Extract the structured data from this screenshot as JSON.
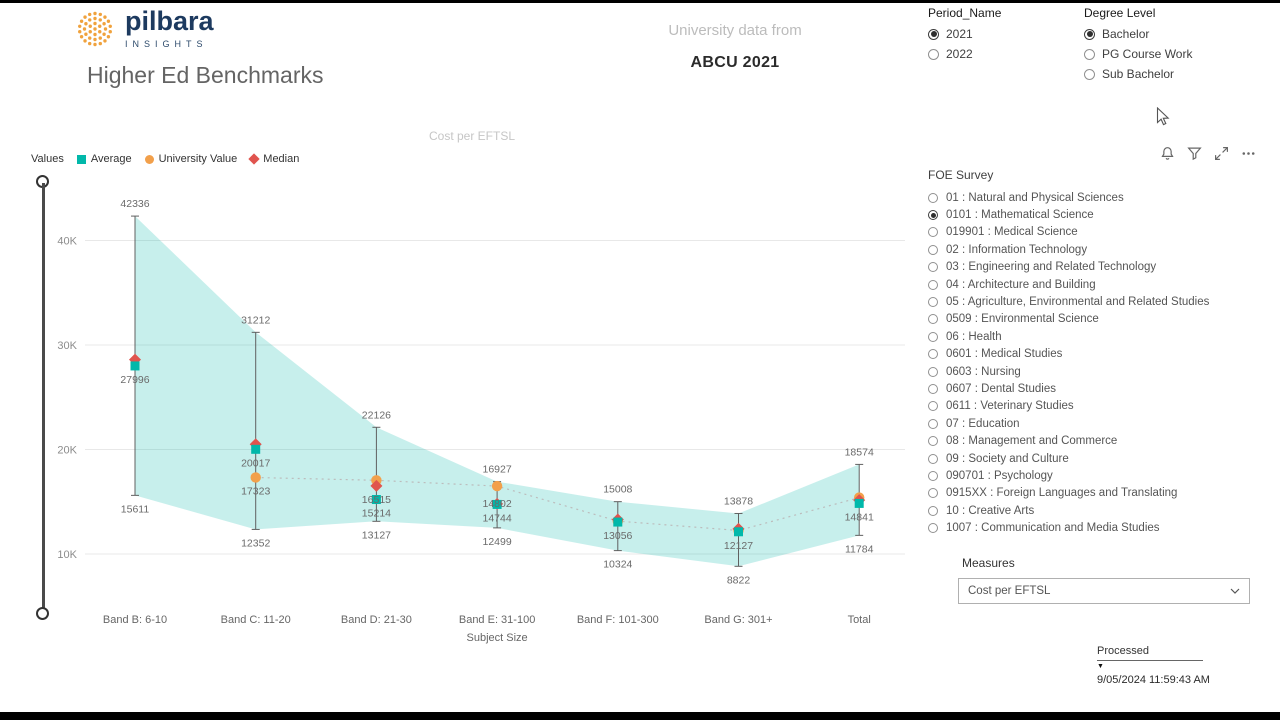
{
  "header": {
    "brand_name": "pilbara",
    "brand_tagline": "INSIGHTS",
    "title": "Higher Ed Benchmarks",
    "center_label": "University data from",
    "center_value": "ABCU 2021"
  },
  "filters": {
    "period": {
      "label": "Period_Name",
      "options": [
        {
          "label": "2021",
          "selected": true
        },
        {
          "label": "2022",
          "selected": false
        }
      ]
    },
    "degree": {
      "label": "Degree Level",
      "options": [
        {
          "label": "Bachelor",
          "selected": true
        },
        {
          "label": "PG Course Work",
          "selected": false
        },
        {
          "label": "Sub Bachelor",
          "selected": false
        }
      ]
    }
  },
  "visual_header": {
    "icons": [
      "bell-icon",
      "filter-icon",
      "focus-mode-icon",
      "more-options-icon"
    ]
  },
  "foe": {
    "label": "FOE Survey",
    "options": [
      {
        "label": "01 : Natural and Physical Sciences",
        "selected": false
      },
      {
        "label": "0101 : Mathematical Science",
        "selected": true
      },
      {
        "label": "019901 : Medical Science",
        "selected": false
      },
      {
        "label": "02 : Information Technology",
        "selected": false
      },
      {
        "label": "03 : Engineering and Related Technology",
        "selected": false
      },
      {
        "label": "04 : Architecture and Building",
        "selected": false
      },
      {
        "label": "05 : Agriculture, Environmental and Related Studies",
        "selected": false
      },
      {
        "label": "0509 : Environmental Science",
        "selected": false
      },
      {
        "label": "06 : Health",
        "selected": false
      },
      {
        "label": "0601 : Medical Studies",
        "selected": false
      },
      {
        "label": "0603 : Nursing",
        "selected": false
      },
      {
        "label": "0607 : Dental Studies",
        "selected": false
      },
      {
        "label": "0611 : Veterinary Studies",
        "selected": false
      },
      {
        "label": "07 : Education",
        "selected": false
      },
      {
        "label": "08 : Management and Commerce",
        "selected": false
      },
      {
        "label": "09 : Society and Culture",
        "selected": false
      },
      {
        "label": "090701 : Psychology",
        "selected": false
      },
      {
        "label": "0915XX : Foreign Languages and Translating",
        "selected": false
      },
      {
        "label": "10 : Creative Arts",
        "selected": false
      },
      {
        "label": "1007 : Communication and Media Studies",
        "selected": false
      }
    ]
  },
  "measures": {
    "label": "Measures",
    "value": "Cost per EFTSL"
  },
  "processed": {
    "label": "Processed",
    "value": "9/05/2024 11:59:43 AM"
  },
  "chart_data": {
    "type": "line",
    "subtype": "error-bars-with-min-max-band",
    "title": "Cost per EFTSL",
    "xlabel": "Subject Size",
    "ylabel": "",
    "legend_label": "Values",
    "legend_position": "top-left",
    "grid": true,
    "band_fill_color": "#01b8aa",
    "series_meta": [
      {
        "key": "average",
        "name": "Average",
        "marker": "square",
        "color": "#01b8aa"
      },
      {
        "key": "university",
        "name": "University Value",
        "marker": "circle",
        "color": "#f2a04b"
      },
      {
        "key": "median",
        "name": "Median",
        "marker": "diamond",
        "color": "#e0544e"
      }
    ],
    "yticks": [
      {
        "value": 10000,
        "label": "10K"
      },
      {
        "value": 20000,
        "label": "20K"
      },
      {
        "value": 30000,
        "label": "30K"
      },
      {
        "value": 40000,
        "label": "40K"
      }
    ],
    "categories": [
      "Band B: 6-10",
      "Band C: 11-20",
      "Band D: 21-30",
      "Band E: 31-100",
      "Band F: 101-300",
      "Band G: 301+",
      "Total"
    ],
    "points": [
      {
        "category": "Band B: 6-10",
        "max": 42336,
        "min": 15611,
        "average": 27996,
        "median": 28600,
        "university": null,
        "labels": [
          {
            "series": "max",
            "pos": "above"
          },
          {
            "series": "average",
            "pos": "below"
          },
          {
            "series": "min",
            "pos": "below"
          }
        ]
      },
      {
        "category": "Band C: 11-20",
        "max": 31212,
        "min": 12352,
        "average": 20017,
        "median": 20500,
        "university": 17323,
        "labels": [
          {
            "series": "max",
            "pos": "above"
          },
          {
            "series": "average",
            "pos": "below"
          },
          {
            "series": "university",
            "pos": "below"
          },
          {
            "series": "min",
            "pos": "below"
          }
        ]
      },
      {
        "category": "Band D: 21-30",
        "max": 22126,
        "min": 13127,
        "average": 15214,
        "median": 16515,
        "university": 17050,
        "labels": [
          {
            "series": "max",
            "pos": "above"
          },
          {
            "series": "median",
            "pos": "below"
          },
          {
            "series": "average",
            "pos": "below"
          },
          {
            "series": "min",
            "pos": "below"
          }
        ]
      },
      {
        "category": "Band E: 31-100",
        "max": 16927,
        "min": 12499,
        "average": 14744,
        "median": 14802,
        "university": 16500,
        "labels": [
          {
            "series": "max",
            "pos": "above"
          },
          {
            "series": "median",
            "pos": "on"
          },
          {
            "series": "average",
            "pos": "below"
          },
          {
            "series": "min",
            "pos": "below"
          }
        ]
      },
      {
        "category": "Band F: 101-300",
        "max": 15008,
        "min": 10324,
        "average": 13056,
        "median": 13300,
        "university": 13150,
        "labels": [
          {
            "series": "max",
            "pos": "above"
          },
          {
            "series": "average",
            "pos": "below"
          },
          {
            "series": "min",
            "pos": "below"
          }
        ]
      },
      {
        "category": "Band G: 301+",
        "max": 13878,
        "min": 8822,
        "average": 12127,
        "median": 12400,
        "university": 12250,
        "labels": [
          {
            "series": "max",
            "pos": "above"
          },
          {
            "series": "average",
            "pos": "below"
          },
          {
            "series": "min",
            "pos": "below"
          }
        ]
      },
      {
        "category": "Total",
        "max": 18574,
        "min": 11784,
        "average": 14841,
        "median": 15150,
        "university": 15400,
        "labels": [
          {
            "series": "max",
            "pos": "above"
          },
          {
            "series": "average",
            "pos": "below"
          },
          {
            "series": "min",
            "pos": "below"
          }
        ]
      }
    ]
  }
}
